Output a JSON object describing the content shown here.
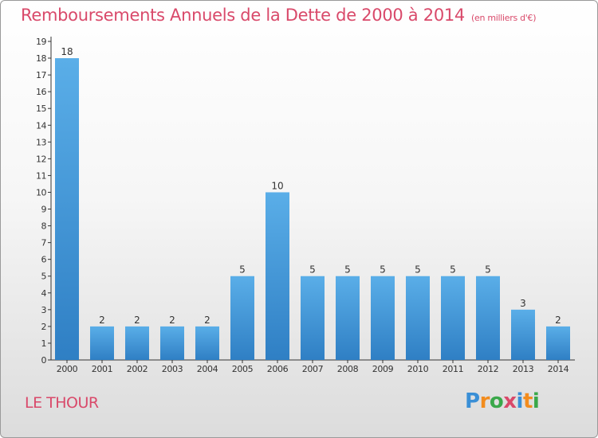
{
  "header": {
    "title": "Remboursements Annuels de la Dette de 2000 à 2014",
    "unit": "(en milliers d'€)"
  },
  "footer": {
    "commune": "LE THOUR",
    "logo_text": "Proxiti",
    "logo_colors": [
      "#3a8fd6",
      "#f28c1e",
      "#3aa84a",
      "#d9496a",
      "#3a8fd6",
      "#f28c1e",
      "#3aa84a"
    ]
  },
  "colors": {
    "title": "#d9496a",
    "bar_top": "#5aaee8",
    "bar_bottom": "#2f7fc4"
  },
  "chart_data": {
    "type": "bar",
    "categories": [
      "2000",
      "2001",
      "2002",
      "2003",
      "2004",
      "2005",
      "2006",
      "2007",
      "2008",
      "2009",
      "2010",
      "2011",
      "2012",
      "2013",
      "2014"
    ],
    "values": [
      18,
      2,
      2,
      2,
      2,
      5,
      10,
      5,
      5,
      5,
      5,
      5,
      5,
      3,
      2
    ],
    "ylim": [
      0,
      19
    ],
    "yticks": [
      "0",
      "1",
      "2",
      "3",
      "4",
      "5",
      "6",
      "7",
      "8",
      "9",
      "10",
      "11",
      "12",
      "13",
      "14",
      "15",
      "16",
      "17",
      "18",
      "19"
    ],
    "grid": false,
    "legend": "none"
  }
}
